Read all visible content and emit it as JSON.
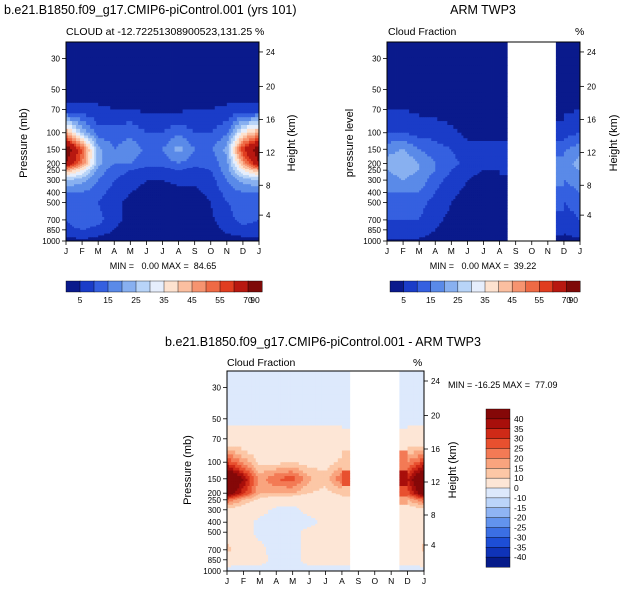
{
  "chart_data": [
    {
      "type": "heatmap",
      "id": "model",
      "title": "b.e21.B1850.f09_g17.CMIP6-piControl.001 (yrs 101)",
      "subtitle_left": "CLOUD at -12.72251308900523,131.25",
      "subtitle_right": "%",
      "ylabel_left": "Pressure (mb)",
      "ylabel_right": "Height (km)",
      "x_ticks": [
        "J",
        "F",
        "M",
        "A",
        "M",
        "J",
        "J",
        "A",
        "S",
        "O",
        "N",
        "D",
        "J"
      ],
      "y_pressure_ticks": [
        "30",
        "50",
        "70",
        "100",
        "150",
        "200",
        "250",
        "300",
        "400",
        "500",
        "700",
        "850",
        "1000"
      ],
      "y_height_ticks": [
        "24",
        "20",
        "16",
        "12",
        "8",
        "4"
      ],
      "stats": "MIN =   0.00 MAX =  84.65",
      "min": 0.0,
      "max": 84.65,
      "colorbar_labels": [
        "5",
        "15",
        "25",
        "35",
        "45",
        "55",
        "70",
        "90"
      ],
      "months": [
        "Jan",
        "Feb",
        "Mar",
        "Apr",
        "May",
        "Jun",
        "Jul",
        "Aug",
        "Sep",
        "Oct",
        "Nov",
        "Dec",
        "Jan"
      ],
      "levels_mb": [
        30,
        50,
        70,
        100,
        150,
        200,
        250,
        300,
        400,
        500,
        700,
        850,
        1000
      ],
      "values": [
        [
          2,
          2,
          2,
          2,
          2,
          2,
          2,
          2,
          2,
          2,
          2,
          2,
          2
        ],
        [
          2,
          2,
          2,
          2,
          2,
          2,
          2,
          2,
          2,
          2,
          2,
          2,
          2
        ],
        [
          6,
          6,
          6,
          5,
          5,
          4,
          4,
          4,
          5,
          5,
          6,
          6,
          6
        ],
        [
          45,
          25,
          12,
          12,
          14,
          10,
          10,
          14,
          10,
          10,
          14,
          35,
          45
        ],
        [
          78,
          55,
          22,
          15,
          18,
          14,
          15,
          22,
          15,
          14,
          22,
          60,
          78
        ],
        [
          70,
          50,
          22,
          15,
          15,
          12,
          12,
          15,
          12,
          12,
          18,
          45,
          70
        ],
        [
          45,
          35,
          18,
          12,
          10,
          8,
          8,
          10,
          8,
          10,
          18,
          35,
          45
        ],
        [
          25,
          22,
          15,
          10,
          8,
          5,
          5,
          6,
          6,
          8,
          15,
          22,
          25
        ],
        [
          15,
          15,
          12,
          8,
          5,
          3,
          3,
          4,
          4,
          6,
          12,
          15,
          15
        ],
        [
          10,
          12,
          10,
          6,
          4,
          3,
          3,
          3,
          3,
          5,
          10,
          12,
          10
        ],
        [
          10,
          15,
          12,
          6,
          4,
          3,
          3,
          3,
          3,
          4,
          8,
          12,
          10
        ],
        [
          8,
          10,
          8,
          5,
          3,
          2,
          2,
          2,
          2,
          3,
          6,
          8,
          8
        ],
        [
          3,
          4,
          3,
          2,
          2,
          1,
          1,
          1,
          1,
          2,
          3,
          3,
          3
        ]
      ]
    },
    {
      "type": "heatmap",
      "id": "obs",
      "title": "ARM TWP3",
      "subtitle_left": "Cloud Fraction",
      "subtitle_right": "%",
      "ylabel_left": "pressure level",
      "ylabel_right": "Height (km)",
      "x_ticks": [
        "J",
        "F",
        "M",
        "A",
        "M",
        "J",
        "J",
        "A",
        "S",
        "O",
        "N",
        "D",
        "J"
      ],
      "y_pressure_ticks": [
        "30",
        "50",
        "70",
        "100",
        "150",
        "200",
        "250",
        "300",
        "400",
        "500",
        "700",
        "850",
        "1000"
      ],
      "y_height_ticks": [
        "24",
        "20",
        "16",
        "12",
        "8",
        "4"
      ],
      "stats": "MIN =   0.00 MAX =  39.22",
      "min": 0.0,
      "max": 39.22,
      "missing_months": [
        "Sep",
        "Oct",
        "Nov"
      ],
      "colorbar_labels": [
        "5",
        "15",
        "25",
        "35",
        "45",
        "55",
        "70",
        "90"
      ],
      "months": [
        "Jan",
        "Feb",
        "Mar",
        "Apr",
        "May",
        "Jun",
        "Jul",
        "Aug",
        "Sep",
        "Oct",
        "Nov",
        "Dec",
        "Jan"
      ],
      "levels_mb": [
        30,
        50,
        70,
        100,
        150,
        200,
        250,
        300,
        400,
        500,
        700,
        850,
        1000
      ],
      "values": [
        [
          1,
          1,
          1,
          1,
          1,
          1,
          1,
          1,
          null,
          null,
          null,
          1,
          1
        ],
        [
          2,
          2,
          2,
          2,
          2,
          2,
          2,
          2,
          null,
          null,
          null,
          2,
          2
        ],
        [
          5,
          5,
          4,
          3,
          3,
          3,
          3,
          3,
          null,
          null,
          null,
          4,
          5
        ],
        [
          10,
          10,
          8,
          8,
          6,
          4,
          4,
          4,
          null,
          null,
          null,
          8,
          10
        ],
        [
          18,
          20,
          15,
          12,
          10,
          6,
          6,
          6,
          null,
          null,
          null,
          14,
          18
        ],
        [
          22,
          25,
          20,
          15,
          12,
          8,
          6,
          6,
          null,
          null,
          null,
          18,
          22
        ],
        [
          20,
          22,
          20,
          15,
          10,
          6,
          5,
          5,
          null,
          null,
          null,
          18,
          20
        ],
        [
          18,
          20,
          18,
          12,
          8,
          5,
          4,
          4,
          null,
          null,
          null,
          15,
          18
        ],
        [
          15,
          15,
          15,
          10,
          6,
          4,
          3,
          3,
          null,
          null,
          null,
          12,
          15
        ],
        [
          12,
          12,
          12,
          8,
          5,
          3,
          3,
          3,
          null,
          null,
          null,
          10,
          12
        ],
        [
          10,
          10,
          10,
          6,
          4,
          3,
          2,
          2,
          null,
          null,
          null,
          8,
          10
        ],
        [
          8,
          8,
          8,
          5,
          3,
          2,
          2,
          2,
          null,
          null,
          null,
          6,
          8
        ],
        [
          4,
          4,
          4,
          3,
          2,
          1,
          1,
          1,
          null,
          null,
          null,
          3,
          4
        ]
      ]
    },
    {
      "type": "heatmap",
      "id": "diff",
      "title": "b.e21.B1850.f09_g17.CMIP6-piControl.001 - ARM TWP3",
      "subtitle_left": "Cloud Fraction",
      "subtitle_right": "%",
      "ylabel_left": "Pressure (mb)",
      "ylabel_right": "Height (km)",
      "x_ticks": [
        "J",
        "F",
        "M",
        "A",
        "M",
        "J",
        "J",
        "A",
        "S",
        "O",
        "N",
        "D",
        "J"
      ],
      "y_pressure_ticks": [
        "30",
        "50",
        "70",
        "100",
        "150",
        "200",
        "250",
        "300",
        "400",
        "500",
        "700",
        "850",
        "1000"
      ],
      "y_height_ticks": [
        "24",
        "20",
        "16",
        "12",
        "8",
        "4"
      ],
      "stats": "MIN = -16.25 MAX =  77.09",
      "min": -16.25,
      "max": 77.09,
      "missing_months": [
        "Sep",
        "Oct",
        "Nov"
      ],
      "colorbar_labels": [
        "40",
        "35",
        "30",
        "25",
        "20",
        "15",
        "10",
        "0",
        "-10",
        "-15",
        "-20",
        "-25",
        "-30",
        "-35",
        "-40"
      ],
      "months": [
        "Jan",
        "Feb",
        "Mar",
        "Apr",
        "May",
        "Jun",
        "Jul",
        "Aug",
        "Sep",
        "Oct",
        "Nov",
        "Dec",
        "Jan"
      ],
      "levels_mb": [
        30,
        50,
        70,
        100,
        150,
        200,
        250,
        300,
        400,
        500,
        700,
        850,
        1000
      ],
      "values": [
        [
          -5,
          -5,
          -5,
          -5,
          -5,
          -5,
          -5,
          -5,
          null,
          null,
          null,
          -5,
          -5
        ],
        [
          -2,
          -2,
          -2,
          -2,
          -2,
          -2,
          -2,
          -2,
          null,
          null,
          null,
          -2,
          -2
        ],
        [
          3,
          3,
          3,
          3,
          3,
          3,
          3,
          3,
          null,
          null,
          null,
          3,
          3
        ],
        [
          30,
          18,
          8,
          8,
          10,
          7,
          7,
          12,
          null,
          null,
          null,
          20,
          30
        ],
        [
          55,
          40,
          18,
          25,
          28,
          16,
          12,
          25,
          null,
          null,
          null,
          35,
          55
        ],
        [
          48,
          32,
          15,
          15,
          15,
          10,
          8,
          12,
          null,
          null,
          null,
          28,
          48
        ],
        [
          25,
          15,
          8,
          5,
          3,
          3,
          3,
          5,
          null,
          null,
          null,
          15,
          25
        ],
        [
          8,
          5,
          3,
          -2,
          -2,
          2,
          2,
          3,
          null,
          null,
          null,
          5,
          8
        ],
        [
          3,
          3,
          -2,
          -3,
          -2,
          -2,
          2,
          2,
          null,
          null,
          null,
          3,
          3
        ],
        [
          8,
          3,
          -2,
          -3,
          -2,
          2,
          2,
          2,
          null,
          null,
          null,
          2,
          8
        ],
        [
          12,
          5,
          2,
          -3,
          -2,
          2,
          2,
          2,
          null,
          null,
          null,
          2,
          12
        ],
        [
          3,
          2,
          2,
          -2,
          -2,
          2,
          2,
          2,
          null,
          null,
          null,
          2,
          3
        ],
        [
          -2,
          -2,
          -2,
          -2,
          -2,
          -2,
          -2,
          -2,
          null,
          null,
          null,
          -2,
          -2
        ]
      ]
    }
  ],
  "colors": {
    "seq": [
      "#0a1a8c",
      "#1a3cc8",
      "#3560e0",
      "#5a8ae8",
      "#88b0f0",
      "#b8d4f8",
      "#e6eefc",
      "#fde2cf",
      "#fbbfa0",
      "#f69470",
      "#ee6a45",
      "#e03d20",
      "#b81810",
      "#7e0a08"
    ],
    "div": [
      "#061b8a",
      "#0f33b8",
      "#1d4ed6",
      "#3b6fe4",
      "#6293ee",
      "#8fb4f4",
      "#bcd5fa",
      "#dde9fc",
      "#fde6d6",
      "#fcc7a6",
      "#f9a47e",
      "#f37a55",
      "#e8502f",
      "#cf2a17",
      "#a80f0b",
      "#850808"
    ],
    "missing": "#ffffff"
  }
}
